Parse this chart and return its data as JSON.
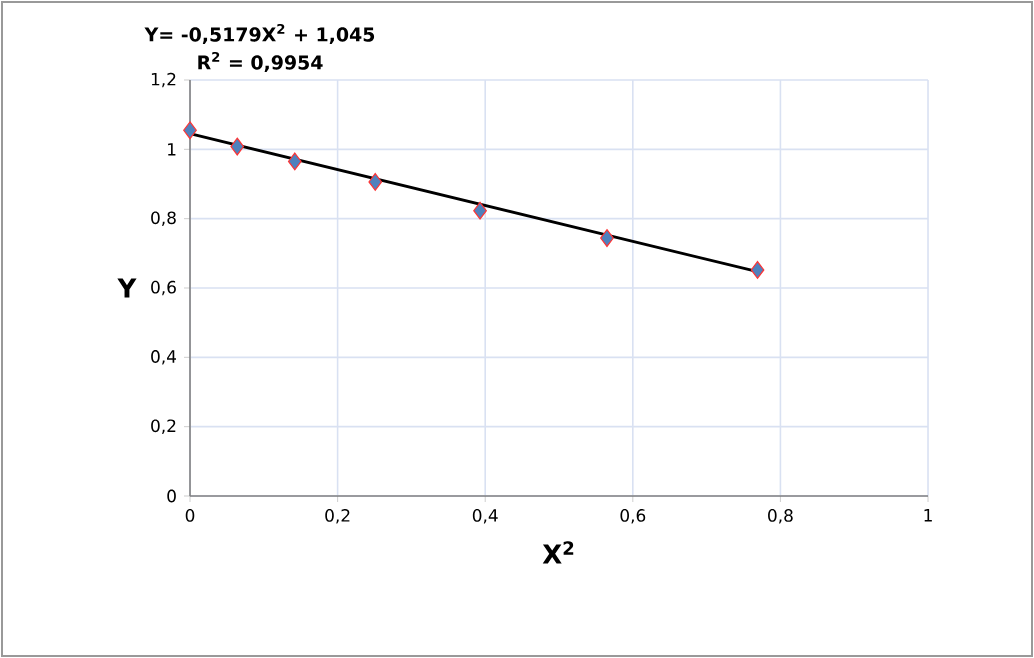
{
  "chart_data": {
    "type": "scatter",
    "xlabel": "X$^{2}$",
    "ylabel": "Y",
    "annotations": [
      "Y= -0,5179X$^{2}$ + 1,045",
      "R$^{2}$ = 0,9954"
    ],
    "series": [
      {
        "color": "#4f81bd",
        "marker": "diamond",
        "x": [
          0,
          0.064,
          0.142,
          0.251,
          0.393,
          0.565,
          0.769
        ],
        "values": [
          1.055,
          1.008,
          0.965,
          0.906,
          0.823,
          0.744,
          0.652
        ]
      },
      {
        "type": "line",
        "color": "#000000",
        "marker": "none",
        "x": [
          0,
          0.769
        ],
        "values": [
          1.045,
          0.647
        ]
      }
    ],
    "xlim": [
      0,
      1
    ],
    "ylim": [
      0,
      1.2
    ],
    "xticks": [
      {
        "value": 0,
        "label": "0"
      },
      {
        "value": 0.2,
        "label": "0,2"
      },
      {
        "value": 0.4,
        "label": "0,4"
      },
      {
        "value": 0.6,
        "label": "0,6"
      },
      {
        "value": 0.8,
        "label": "0,8"
      },
      {
        "value": 1,
        "label": "1"
      }
    ],
    "yticks": [
      {
        "value": 0,
        "label": "0"
      },
      {
        "value": 0.2,
        "label": "0,2"
      },
      {
        "value": 0.4,
        "label": "0,4"
      },
      {
        "value": 0.6,
        "label": "0,6"
      },
      {
        "value": 0.8,
        "label": "0,8"
      },
      {
        "value": 1,
        "label": "1"
      },
      {
        "value": 1.2,
        "label": "1,2"
      }
    ],
    "grid": true
  }
}
